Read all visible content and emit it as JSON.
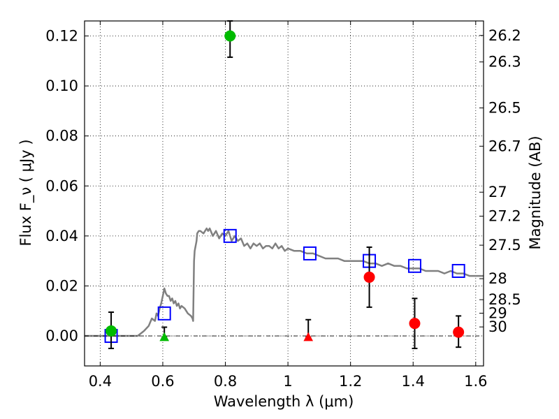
{
  "chart_data": {
    "type": "scatter",
    "xlabel": "Wavelength  λ (μm)",
    "ylabel": "Flux  F_ν  ( μJy )",
    "y2label": "Magnitude (AB)",
    "xlim": [
      0.35,
      1.625
    ],
    "ylim": [
      -0.012,
      0.126
    ],
    "grid": true,
    "x_ticks": [
      {
        "value": 0.4,
        "label": "0.4"
      },
      {
        "value": 0.6,
        "label": "0.6"
      },
      {
        "value": 0.8,
        "label": "0.8"
      },
      {
        "value": 1.0,
        "label": "1"
      },
      {
        "value": 1.2,
        "label": "1.2"
      },
      {
        "value": 1.4,
        "label": "1.4"
      },
      {
        "value": 1.6,
        "label": "1.6"
      }
    ],
    "y_ticks": [
      {
        "value": 0.0,
        "label": "0.00"
      },
      {
        "value": 0.02,
        "label": "0.02"
      },
      {
        "value": 0.04,
        "label": "0.04"
      },
      {
        "value": 0.06,
        "label": "0.06"
      },
      {
        "value": 0.08,
        "label": "0.08"
      },
      {
        "value": 0.1,
        "label": "0.10"
      },
      {
        "value": 0.12,
        "label": "0.12"
      }
    ],
    "y2_ticks": [
      {
        "label": "26.2",
        "flux": 0.1202
      },
      {
        "label": "26.3",
        "flux": 0.1096
      },
      {
        "label": "26.5",
        "flux": 0.0912
      },
      {
        "label": "26.7",
        "flux": 0.0759
      },
      {
        "label": "27",
        "flux": 0.0575
      },
      {
        "label": "27.2",
        "flux": 0.0479
      },
      {
        "label": "27.5",
        "flux": 0.0363
      },
      {
        "label": "28",
        "flux": 0.0229
      },
      {
        "label": "28.5",
        "flux": 0.0145
      },
      {
        "label": "29",
        "flux": 0.0091
      },
      {
        "label": "30",
        "flux": 0.0036
      }
    ],
    "series": [
      {
        "kind": "line",
        "color": "#808080",
        "points": [
          [
            0.35,
            0.0
          ],
          [
            0.4,
            0.0
          ],
          [
            0.45,
            0.0
          ],
          [
            0.5,
            0.0
          ],
          [
            0.52,
            0.0
          ],
          [
            0.54,
            0.002
          ],
          [
            0.555,
            0.004
          ],
          [
            0.565,
            0.007
          ],
          [
            0.575,
            0.006
          ],
          [
            0.58,
            0.009
          ],
          [
            0.585,
            0.008
          ],
          [
            0.59,
            0.011
          ],
          [
            0.595,
            0.013
          ],
          [
            0.6,
            0.016
          ],
          [
            0.605,
            0.019
          ],
          [
            0.61,
            0.017
          ],
          [
            0.615,
            0.016
          ],
          [
            0.62,
            0.016
          ],
          [
            0.625,
            0.014
          ],
          [
            0.63,
            0.015
          ],
          [
            0.635,
            0.013
          ],
          [
            0.64,
            0.014
          ],
          [
            0.645,
            0.012
          ],
          [
            0.65,
            0.013
          ],
          [
            0.655,
            0.011
          ],
          [
            0.66,
            0.012
          ],
          [
            0.67,
            0.011
          ],
          [
            0.675,
            0.01
          ],
          [
            0.68,
            0.009
          ],
          [
            0.69,
            0.008
          ],
          [
            0.695,
            0.007
          ],
          [
            0.697,
            0.006
          ],
          [
            0.7,
            0.03
          ],
          [
            0.702,
            0.034
          ],
          [
            0.708,
            0.038
          ],
          [
            0.71,
            0.041
          ],
          [
            0.715,
            0.042
          ],
          [
            0.72,
            0.042
          ],
          [
            0.73,
            0.041
          ],
          [
            0.74,
            0.043
          ],
          [
            0.745,
            0.042
          ],
          [
            0.75,
            0.043
          ],
          [
            0.76,
            0.04
          ],
          [
            0.77,
            0.042
          ],
          [
            0.78,
            0.039
          ],
          [
            0.79,
            0.041
          ],
          [
            0.8,
            0.04
          ],
          [
            0.81,
            0.042
          ],
          [
            0.82,
            0.038
          ],
          [
            0.83,
            0.04
          ],
          [
            0.84,
            0.038
          ],
          [
            0.85,
            0.039
          ],
          [
            0.86,
            0.036
          ],
          [
            0.87,
            0.037
          ],
          [
            0.88,
            0.035
          ],
          [
            0.89,
            0.037
          ],
          [
            0.9,
            0.036
          ],
          [
            0.91,
            0.037
          ],
          [
            0.92,
            0.035
          ],
          [
            0.93,
            0.036
          ],
          [
            0.94,
            0.036
          ],
          [
            0.95,
            0.035
          ],
          [
            0.96,
            0.037
          ],
          [
            0.97,
            0.035
          ],
          [
            0.98,
            0.036
          ],
          [
            0.99,
            0.034
          ],
          [
            1.0,
            0.035
          ],
          [
            1.02,
            0.034
          ],
          [
            1.04,
            0.034
          ],
          [
            1.06,
            0.033
          ],
          [
            1.08,
            0.033
          ],
          [
            1.1,
            0.032
          ],
          [
            1.12,
            0.031
          ],
          [
            1.14,
            0.031
          ],
          [
            1.16,
            0.031
          ],
          [
            1.18,
            0.03
          ],
          [
            1.2,
            0.03
          ],
          [
            1.22,
            0.03
          ],
          [
            1.24,
            0.03
          ],
          [
            1.26,
            0.029
          ],
          [
            1.28,
            0.029
          ],
          [
            1.3,
            0.028
          ],
          [
            1.32,
            0.029
          ],
          [
            1.34,
            0.028
          ],
          [
            1.36,
            0.028
          ],
          [
            1.38,
            0.027
          ],
          [
            1.4,
            0.027
          ],
          [
            1.42,
            0.027
          ],
          [
            1.44,
            0.026
          ],
          [
            1.46,
            0.026
          ],
          [
            1.48,
            0.026
          ],
          [
            1.5,
            0.025
          ],
          [
            1.52,
            0.026
          ],
          [
            1.54,
            0.025
          ],
          [
            1.56,
            0.025
          ],
          [
            1.58,
            0.024
          ],
          [
            1.6,
            0.024
          ],
          [
            1.625,
            0.024
          ]
        ]
      },
      {
        "kind": "open-square",
        "color": "#0000ff",
        "points": [
          [
            0.435,
            0.0
          ],
          [
            0.605,
            0.009
          ],
          [
            0.815,
            0.04
          ],
          [
            1.07,
            0.033
          ],
          [
            1.26,
            0.03
          ],
          [
            1.405,
            0.028
          ],
          [
            1.545,
            0.026
          ]
        ]
      },
      {
        "kind": "filled-circle",
        "color": "#00bb00",
        "points": [
          {
            "x": 0.435,
            "y": 0.002,
            "err_lo": -0.005,
            "err_hi": 0.0095
          },
          {
            "x": 0.815,
            "y": 0.12,
            "err_lo": 0.1115,
            "err_hi": 0.126
          }
        ]
      },
      {
        "kind": "triangle",
        "color": "#00bb00",
        "points": [
          {
            "x": 0.605,
            "y": -0.0005,
            "err_lo": -0.0005,
            "err_hi": 0.0035
          }
        ]
      },
      {
        "kind": "triangle",
        "color": "#ff0000",
        "points": [
          {
            "x": 1.065,
            "y": -0.0005,
            "err_lo": -0.0005,
            "err_hi": 0.0065
          }
        ]
      },
      {
        "kind": "filled-circle",
        "color": "#ff0000",
        "points": [
          {
            "x": 1.26,
            "y": 0.0235,
            "err_lo": 0.0115,
            "err_hi": 0.0355
          },
          {
            "x": 1.405,
            "y": 0.005,
            "err_lo": -0.005,
            "err_hi": 0.015
          },
          {
            "x": 1.545,
            "y": 0.0015,
            "err_lo": -0.0045,
            "err_hi": 0.008
          }
        ]
      }
    ]
  }
}
